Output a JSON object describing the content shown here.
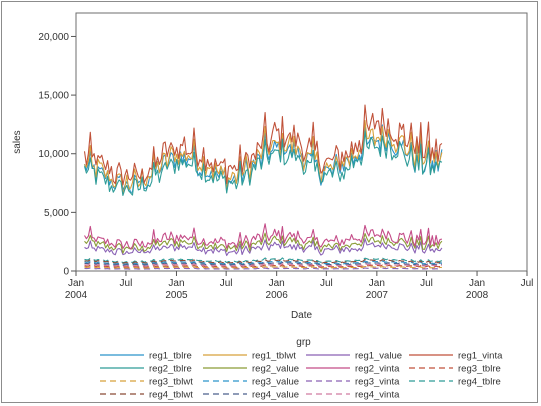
{
  "chart_data": {
    "type": "line",
    "xlabel": "Date",
    "ylabel": "sales",
    "x_range": [
      "2004-01",
      "2008-07"
    ],
    "ylim": [
      0,
      22000
    ],
    "y_ticks": [
      0,
      5000,
      10000,
      15000,
      20000
    ],
    "y_tick_labels": [
      "0",
      "5,000",
      "10,000",
      "15,000",
      "20,000"
    ],
    "x_ticks": [
      {
        "date": "2004-01",
        "line1": "Jan",
        "line2": "2004"
      },
      {
        "date": "2004-07",
        "line1": "Jul",
        "line2": ""
      },
      {
        "date": "2005-01",
        "line1": "Jan",
        "line2": "2005"
      },
      {
        "date": "2005-07",
        "line1": "Jul",
        "line2": ""
      },
      {
        "date": "2006-01",
        "line1": "Jan",
        "line2": "2006"
      },
      {
        "date": "2006-07",
        "line1": "Jul",
        "line2": ""
      },
      {
        "date": "2007-01",
        "line1": "Jan",
        "line2": "2007"
      },
      {
        "date": "2007-07",
        "line1": "Jul",
        "line2": ""
      },
      {
        "date": "2008-01",
        "line1": "Jan",
        "line2": "2008"
      },
      {
        "date": "2008-07",
        "line1": "Jul",
        "line2": ""
      }
    ],
    "data_start": "2004-02-01",
    "data_end": "2007-08-31",
    "grid": false,
    "legend": {
      "title": "grp",
      "placement": "bottom",
      "columns": 4
    },
    "series": [
      {
        "name": "reg1_tblre",
        "color": "#2a93c9",
        "dash": "solid",
        "approx_level": 9200,
        "trend": 2600,
        "spread": 0.22
      },
      {
        "name": "reg1_tblwt",
        "color": "#d8a03a",
        "dash": "solid",
        "approx_level": 9500,
        "trend": 2700,
        "spread": 0.22
      },
      {
        "name": "reg1_value",
        "color": "#8a62b5",
        "dash": "solid",
        "approx_level": 1900,
        "trend": 300,
        "spread": 0.35
      },
      {
        "name": "reg1_vinta",
        "color": "#c0523a",
        "dash": "solid",
        "approx_level": 10200,
        "trend": 2900,
        "spread": 0.23
      },
      {
        "name": "reg2_tblre",
        "color": "#2f9c98",
        "dash": "solid",
        "approx_level": 8800,
        "trend": 2500,
        "spread": 0.21
      },
      {
        "name": "reg2_value",
        "color": "#8a9c36",
        "dash": "solid",
        "approx_level": 2300,
        "trend": 300,
        "spread": 0.35
      },
      {
        "name": "reg2_vinta",
        "color": "#c44c88",
        "dash": "solid",
        "approx_level": 2700,
        "trend": 400,
        "spread": 0.4
      },
      {
        "name": "reg3_tblre",
        "color": "#c0523a",
        "dash": "dashed",
        "approx_level": 400,
        "trend": 40,
        "spread": 0.2
      },
      {
        "name": "reg3_tblwt",
        "color": "#d8a03a",
        "dash": "dashed",
        "approx_level": 300,
        "trend": 30,
        "spread": 0.2
      },
      {
        "name": "reg3_value",
        "color": "#2a93c9",
        "dash": "dashed",
        "approx_level": 700,
        "trend": 60,
        "spread": 0.15
      },
      {
        "name": "reg3_vinta",
        "color": "#8a62b5",
        "dash": "dashed",
        "approx_level": 200,
        "trend": 20,
        "spread": 0.2
      },
      {
        "name": "reg4_tblre",
        "color": "#2f9c98",
        "dash": "dashed",
        "approx_level": 900,
        "trend": 60,
        "spread": 0.15
      },
      {
        "name": "reg4_tblwt",
        "color": "#8b4a36",
        "dash": "dashed",
        "approx_level": 800,
        "trend": 50,
        "spread": 0.15
      },
      {
        "name": "reg4_value",
        "color": "#4a5f8c",
        "dash": "dashed",
        "approx_level": 600,
        "trend": 40,
        "spread": 0.15
      },
      {
        "name": "reg4_vinta",
        "color": "#d07aa0",
        "dash": "dashed",
        "approx_level": 500,
        "trend": 40,
        "spread": 0.2
      }
    ]
  }
}
